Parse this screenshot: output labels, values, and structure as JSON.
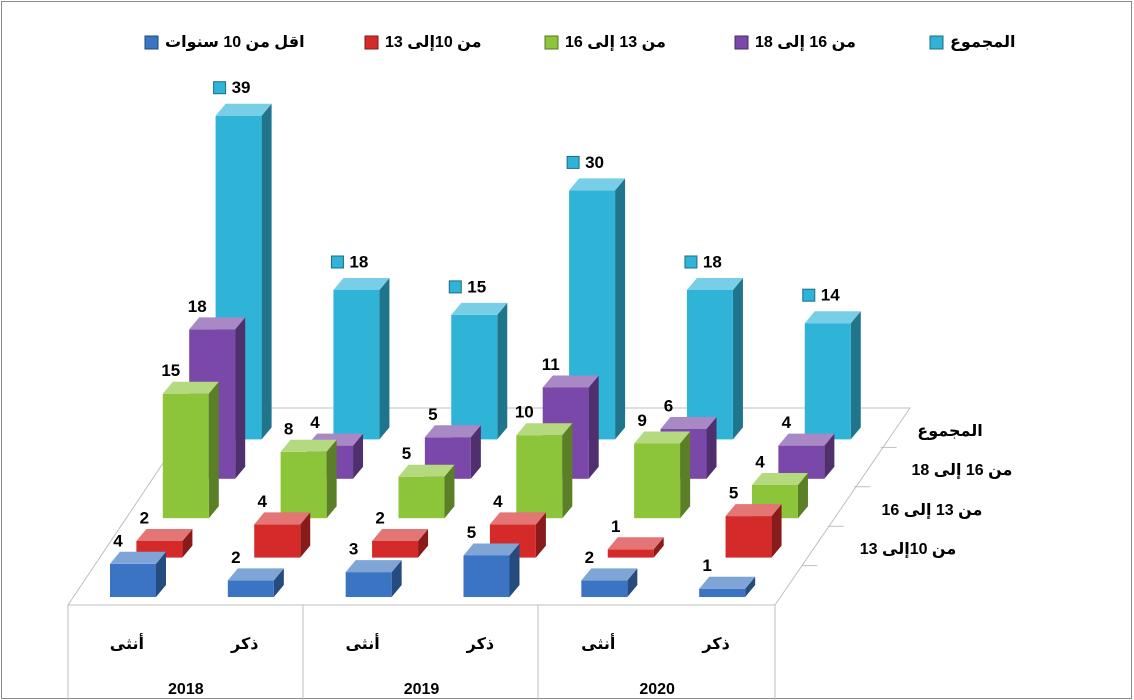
{
  "chart_data": {
    "type": "bar3d",
    "categories": [
      "أنثى",
      "ذكر",
      "أنثى",
      "ذكر",
      "أنثى",
      "ذكر"
    ],
    "groups": [
      "2018",
      "2019",
      "2020"
    ],
    "depth_labels": [
      null,
      "من 10إلى 13",
      "من 13 إلى 16",
      "من 16 إلى 18",
      "المجموع"
    ],
    "series": [
      {
        "name": "اقل من 10 سنوات",
        "color": "#3a74c2",
        "values": [
          4,
          2,
          3,
          5,
          2,
          1
        ]
      },
      {
        "name": "من 10إلى 13",
        "color": "#d42a2a",
        "values": [
          2,
          4,
          2,
          4,
          1,
          5
        ]
      },
      {
        "name": "من 13 إلى 16",
        "color": "#8cc43a",
        "values": [
          15,
          8,
          5,
          10,
          9,
          4
        ]
      },
      {
        "name": "من 16 إلى 18",
        "color": "#7a48a8",
        "values": [
          18,
          4,
          5,
          11,
          6,
          4
        ]
      },
      {
        "name": "المجموع",
        "color": "#2fb4d8",
        "values": [
          39,
          18,
          15,
          30,
          18,
          14
        ]
      }
    ]
  }
}
